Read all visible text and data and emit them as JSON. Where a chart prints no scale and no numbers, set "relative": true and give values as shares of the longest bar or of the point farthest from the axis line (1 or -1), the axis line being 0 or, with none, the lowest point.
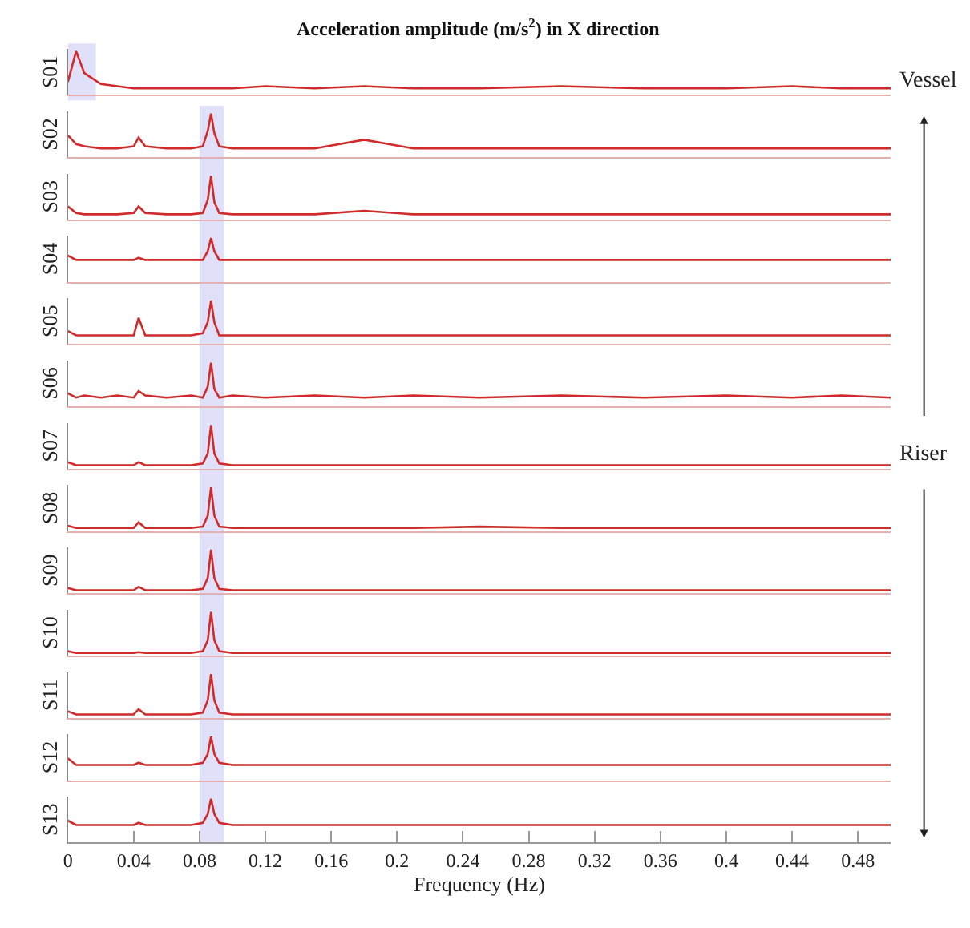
{
  "chart_data": [
    {
      "type": "line",
      "title": "Acceleration amplitude (m/s$^{2}$) in X direction",
      "ylabel": "S01",
      "relative": true,
      "xlim": [
        0,
        0.5
      ],
      "tick_labels": false,
      "annotations": [
        "Vessel"
      ],
      "bands": [
        {
          "axis": "x",
          "from": 0,
          "to": 0.017,
          "color": "#7070e0"
        }
      ],
      "x": [
        0,
        0.005,
        0.01,
        0.02,
        0.03,
        0.04,
        0.043,
        0.047,
        0.06,
        0.075,
        0.082,
        0.085,
        0.087,
        0.089,
        0.092,
        0.1,
        0.12,
        0.15,
        0.18,
        0.21,
        0.25,
        0.3,
        0.35,
        0.4,
        0.44,
        0.47,
        0.5
      ],
      "series": [
        {
          "color": "#d02a2a",
          "values": [
            0.3,
            1,
            0.5,
            0.25,
            0.2,
            0.15,
            0.15,
            0.15,
            0.15,
            0.15,
            0.15,
            0.15,
            0.15,
            0.15,
            0.15,
            0.15,
            0.2,
            0.15,
            0.2,
            0.15,
            0.15,
            0.2,
            0.15,
            0.15,
            0.2,
            0.15,
            0.15
          ]
        }
      ]
    },
    {
      "type": "line",
      "ylabel": "S02",
      "relative": true,
      "xlim": [
        0,
        0.5
      ],
      "tick_labels": false,
      "bands": [
        {
          "axis": "x",
          "from": 0.08,
          "to": 0.095,
          "color": "#7070e0"
        }
      ],
      "x": [
        0,
        0.005,
        0.01,
        0.02,
        0.03,
        0.04,
        0.043,
        0.047,
        0.06,
        0.075,
        0.082,
        0.085,
        0.087,
        0.089,
        0.092,
        0.1,
        0.12,
        0.15,
        0.18,
        0.21,
        0.25,
        0.3,
        0.35,
        0.4,
        0.44,
        0.47,
        0.5
      ],
      "series": [
        {
          "color": "#d02a2a",
          "values": [
            0.5,
            0.3,
            0.25,
            0.2,
            0.2,
            0.25,
            0.45,
            0.25,
            0.2,
            0.2,
            0.25,
            0.6,
            1,
            0.55,
            0.25,
            0.2,
            0.2,
            0.2,
            0.4,
            0.2,
            0.2,
            0.2,
            0.2,
            0.2,
            0.2,
            0.2,
            0.2
          ]
        }
      ]
    },
    {
      "type": "line",
      "ylabel": "S03",
      "relative": true,
      "xlim": [
        0,
        0.5
      ],
      "tick_labels": false,
      "bands": [
        {
          "axis": "x",
          "from": 0.08,
          "to": 0.095,
          "color": "#7070e0"
        }
      ],
      "x": [
        0,
        0.005,
        0.01,
        0.02,
        0.03,
        0.04,
        0.043,
        0.047,
        0.06,
        0.075,
        0.082,
        0.085,
        0.087,
        0.089,
        0.092,
        0.1,
        0.12,
        0.15,
        0.18,
        0.21,
        0.25,
        0.3,
        0.35,
        0.4,
        0.44,
        0.47,
        0.5
      ],
      "series": [
        {
          "color": "#d02a2a",
          "values": [
            0.3,
            0.15,
            0.12,
            0.12,
            0.12,
            0.15,
            0.3,
            0.15,
            0.12,
            0.12,
            0.15,
            0.45,
            1,
            0.4,
            0.15,
            0.12,
            0.12,
            0.12,
            0.2,
            0.12,
            0.12,
            0.12,
            0.12,
            0.12,
            0.12,
            0.12,
            0.12
          ]
        }
      ]
    },
    {
      "type": "line",
      "ylabel": "S04",
      "relative": true,
      "xlim": [
        0,
        0.5
      ],
      "tick_labels": false,
      "bands": [
        {
          "axis": "x",
          "from": 0.08,
          "to": 0.095,
          "color": "#7070e0"
        }
      ],
      "x": [
        0,
        0.005,
        0.01,
        0.02,
        0.03,
        0.04,
        0.043,
        0.047,
        0.06,
        0.075,
        0.082,
        0.085,
        0.087,
        0.089,
        0.092,
        0.1,
        0.12,
        0.15,
        0.18,
        0.21,
        0.25,
        0.3,
        0.35,
        0.4,
        0.44,
        0.47,
        0.5
      ],
      "series": [
        {
          "color": "#d02a2a",
          "values": [
            0.6,
            0.5,
            0.5,
            0.5,
            0.5,
            0.5,
            0.55,
            0.5,
            0.5,
            0.5,
            0.5,
            0.7,
            1,
            0.7,
            0.5,
            0.5,
            0.5,
            0.5,
            0.5,
            0.5,
            0.5,
            0.5,
            0.5,
            0.5,
            0.5,
            0.5,
            0.5
          ]
        }
      ]
    },
    {
      "type": "line",
      "ylabel": "S05",
      "relative": true,
      "xlim": [
        0,
        0.5
      ],
      "tick_labels": false,
      "bands": [
        {
          "axis": "x",
          "from": 0.08,
          "to": 0.095,
          "color": "#7070e0"
        }
      ],
      "x": [
        0,
        0.005,
        0.01,
        0.02,
        0.03,
        0.04,
        0.043,
        0.047,
        0.06,
        0.075,
        0.082,
        0.085,
        0.087,
        0.089,
        0.092,
        0.1,
        0.12,
        0.15,
        0.18,
        0.21,
        0.25,
        0.3,
        0.35,
        0.4,
        0.44,
        0.47,
        0.5
      ],
      "series": [
        {
          "color": "#d02a2a",
          "values": [
            0.3,
            0.2,
            0.2,
            0.2,
            0.2,
            0.2,
            0.6,
            0.2,
            0.2,
            0.2,
            0.25,
            0.5,
            1,
            0.5,
            0.2,
            0.2,
            0.2,
            0.2,
            0.2,
            0.2,
            0.2,
            0.2,
            0.2,
            0.2,
            0.2,
            0.2,
            0.2
          ]
        }
      ]
    },
    {
      "type": "line",
      "ylabel": "S06",
      "relative": true,
      "xlim": [
        0,
        0.5
      ],
      "tick_labels": false,
      "bands": [
        {
          "axis": "x",
          "from": 0.08,
          "to": 0.095,
          "color": "#7070e0"
        }
      ],
      "x": [
        0,
        0.005,
        0.01,
        0.02,
        0.03,
        0.04,
        0.043,
        0.047,
        0.06,
        0.075,
        0.082,
        0.085,
        0.087,
        0.089,
        0.092,
        0.1,
        0.12,
        0.15,
        0.18,
        0.21,
        0.25,
        0.3,
        0.35,
        0.4,
        0.44,
        0.47,
        0.5
      ],
      "series": [
        {
          "color": "#d02a2a",
          "values": [
            0.3,
            0.2,
            0.25,
            0.2,
            0.25,
            0.2,
            0.35,
            0.25,
            0.2,
            0.25,
            0.2,
            0.45,
            1,
            0.4,
            0.2,
            0.25,
            0.2,
            0.25,
            0.2,
            0.25,
            0.2,
            0.25,
            0.2,
            0.25,
            0.2,
            0.25,
            0.2
          ]
        }
      ]
    },
    {
      "type": "line",
      "ylabel": "S07",
      "annotations": [
        "Riser"
      ],
      "relative": true,
      "xlim": [
        0,
        0.5
      ],
      "tick_labels": false,
      "bands": [
        {
          "axis": "x",
          "from": 0.08,
          "to": 0.095,
          "color": "#7070e0"
        }
      ],
      "x": [
        0,
        0.005,
        0.01,
        0.02,
        0.03,
        0.04,
        0.043,
        0.047,
        0.06,
        0.075,
        0.082,
        0.085,
        0.087,
        0.089,
        0.092,
        0.1,
        0.12,
        0.15,
        0.18,
        0.21,
        0.25,
        0.3,
        0.35,
        0.4,
        0.44,
        0.47,
        0.5
      ],
      "series": [
        {
          "color": "#d02a2a",
          "values": [
            0.15,
            0.08,
            0.08,
            0.08,
            0.08,
            0.08,
            0.15,
            0.08,
            0.08,
            0.08,
            0.12,
            0.35,
            1,
            0.35,
            0.12,
            0.08,
            0.08,
            0.08,
            0.08,
            0.08,
            0.08,
            0.08,
            0.08,
            0.08,
            0.08,
            0.08,
            0.08
          ]
        }
      ]
    },
    {
      "type": "line",
      "ylabel": "S08",
      "relative": true,
      "xlim": [
        0,
        0.5
      ],
      "tick_labels": false,
      "bands": [
        {
          "axis": "x",
          "from": 0.08,
          "to": 0.095,
          "color": "#7070e0"
        }
      ],
      "x": [
        0,
        0.005,
        0.01,
        0.02,
        0.03,
        0.04,
        0.043,
        0.047,
        0.06,
        0.075,
        0.082,
        0.085,
        0.087,
        0.089,
        0.092,
        0.1,
        0.12,
        0.15,
        0.18,
        0.21,
        0.25,
        0.3,
        0.35,
        0.4,
        0.44,
        0.47,
        0.5
      ],
      "series": [
        {
          "color": "#d02a2a",
          "values": [
            0.12,
            0.07,
            0.07,
            0.07,
            0.07,
            0.07,
            0.2,
            0.07,
            0.07,
            0.07,
            0.1,
            0.35,
            1,
            0.35,
            0.1,
            0.07,
            0.07,
            0.07,
            0.07,
            0.07,
            0.1,
            0.07,
            0.07,
            0.07,
            0.07,
            0.07,
            0.07
          ]
        }
      ]
    },
    {
      "type": "line",
      "ylabel": "S09",
      "relative": true,
      "xlim": [
        0,
        0.5
      ],
      "tick_labels": false,
      "bands": [
        {
          "axis": "x",
          "from": 0.08,
          "to": 0.095,
          "color": "#7070e0"
        }
      ],
      "x": [
        0,
        0.005,
        0.01,
        0.02,
        0.03,
        0.04,
        0.043,
        0.047,
        0.06,
        0.075,
        0.082,
        0.085,
        0.087,
        0.089,
        0.092,
        0.1,
        0.12,
        0.15,
        0.18,
        0.21,
        0.25,
        0.3,
        0.35,
        0.4,
        0.44,
        0.47,
        0.5
      ],
      "series": [
        {
          "color": "#d02a2a",
          "values": [
            0.12,
            0.07,
            0.07,
            0.07,
            0.07,
            0.07,
            0.15,
            0.07,
            0.07,
            0.07,
            0.1,
            0.35,
            1,
            0.35,
            0.1,
            0.07,
            0.07,
            0.07,
            0.07,
            0.07,
            0.07,
            0.07,
            0.07,
            0.07,
            0.07,
            0.07,
            0.07
          ]
        }
      ]
    },
    {
      "type": "line",
      "ylabel": "S10",
      "relative": true,
      "xlim": [
        0,
        0.5
      ],
      "tick_labels": false,
      "bands": [
        {
          "axis": "x",
          "from": 0.08,
          "to": 0.095,
          "color": "#7070e0"
        }
      ],
      "x": [
        0,
        0.005,
        0.01,
        0.02,
        0.03,
        0.04,
        0.043,
        0.047,
        0.06,
        0.075,
        0.082,
        0.085,
        0.087,
        0.089,
        0.092,
        0.1,
        0.12,
        0.15,
        0.18,
        0.21,
        0.25,
        0.3,
        0.35,
        0.4,
        0.44,
        0.47,
        0.5
      ],
      "series": [
        {
          "color": "#d02a2a",
          "values": [
            0.1,
            0.06,
            0.06,
            0.06,
            0.06,
            0.06,
            0.08,
            0.06,
            0.06,
            0.06,
            0.1,
            0.35,
            1,
            0.35,
            0.1,
            0.06,
            0.06,
            0.06,
            0.06,
            0.06,
            0.06,
            0.06,
            0.06,
            0.06,
            0.06,
            0.06,
            0.06
          ]
        }
      ]
    },
    {
      "type": "line",
      "ylabel": "S11",
      "relative": true,
      "xlim": [
        0,
        0.5
      ],
      "tick_labels": false,
      "bands": [
        {
          "axis": "x",
          "from": 0.08,
          "to": 0.095,
          "color": "#7070e0"
        }
      ],
      "x": [
        0,
        0.005,
        0.01,
        0.02,
        0.03,
        0.04,
        0.043,
        0.047,
        0.06,
        0.075,
        0.082,
        0.085,
        0.087,
        0.089,
        0.092,
        0.1,
        0.12,
        0.15,
        0.18,
        0.21,
        0.25,
        0.3,
        0.35,
        0.4,
        0.44,
        0.47,
        0.5
      ],
      "series": [
        {
          "color": "#d02a2a",
          "values": [
            0.15,
            0.08,
            0.08,
            0.08,
            0.08,
            0.08,
            0.2,
            0.08,
            0.08,
            0.08,
            0.12,
            0.4,
            1,
            0.4,
            0.12,
            0.08,
            0.08,
            0.08,
            0.08,
            0.08,
            0.08,
            0.08,
            0.08,
            0.08,
            0.08,
            0.08,
            0.08
          ]
        }
      ]
    },
    {
      "type": "line",
      "ylabel": "S12",
      "relative": true,
      "xlim": [
        0,
        0.5
      ],
      "tick_labels": false,
      "bands": [
        {
          "axis": "x",
          "from": 0.08,
          "to": 0.095,
          "color": "#7070e0"
        }
      ],
      "x": [
        0,
        0.005,
        0.01,
        0.02,
        0.03,
        0.04,
        0.043,
        0.047,
        0.06,
        0.075,
        0.082,
        0.085,
        0.087,
        0.089,
        0.092,
        0.1,
        0.12,
        0.15,
        0.18,
        0.21,
        0.25,
        0.3,
        0.35,
        0.4,
        0.44,
        0.47,
        0.5
      ],
      "series": [
        {
          "color": "#d02a2a",
          "values": [
            0.5,
            0.35,
            0.35,
            0.35,
            0.35,
            0.35,
            0.4,
            0.35,
            0.35,
            0.35,
            0.4,
            0.6,
            1,
            0.6,
            0.4,
            0.35,
            0.35,
            0.35,
            0.35,
            0.35,
            0.35,
            0.35,
            0.35,
            0.35,
            0.35,
            0.35,
            0.35
          ]
        }
      ]
    },
    {
      "type": "line",
      "ylabel": "S13",
      "xlabel": "Frequency (Hz)",
      "relative": true,
      "xlim": [
        0,
        0.5
      ],
      "xticks": [
        0,
        0.04,
        0.08,
        0.12,
        0.16,
        0.2,
        0.24,
        0.28,
        0.32,
        0.36,
        0.4,
        0.44,
        0.48
      ],
      "tick_labels": "x",
      "bands": [
        {
          "axis": "x",
          "from": 0.08,
          "to": 0.095,
          "color": "#7070e0"
        }
      ],
      "x": [
        0,
        0.005,
        0.01,
        0.02,
        0.03,
        0.04,
        0.043,
        0.047,
        0.06,
        0.075,
        0.082,
        0.085,
        0.087,
        0.089,
        0.092,
        0.1,
        0.12,
        0.15,
        0.18,
        0.21,
        0.25,
        0.3,
        0.35,
        0.4,
        0.44,
        0.47,
        0.5
      ],
      "series": [
        {
          "color": "#d02a2a",
          "values": [
            0.5,
            0.4,
            0.4,
            0.4,
            0.4,
            0.4,
            0.45,
            0.4,
            0.4,
            0.4,
            0.45,
            0.65,
            1,
            0.65,
            0.45,
            0.4,
            0.4,
            0.4,
            0.4,
            0.4,
            0.4,
            0.4,
            0.4,
            0.4,
            0.4,
            0.4,
            0.4
          ]
        }
      ]
    }
  ]
}
